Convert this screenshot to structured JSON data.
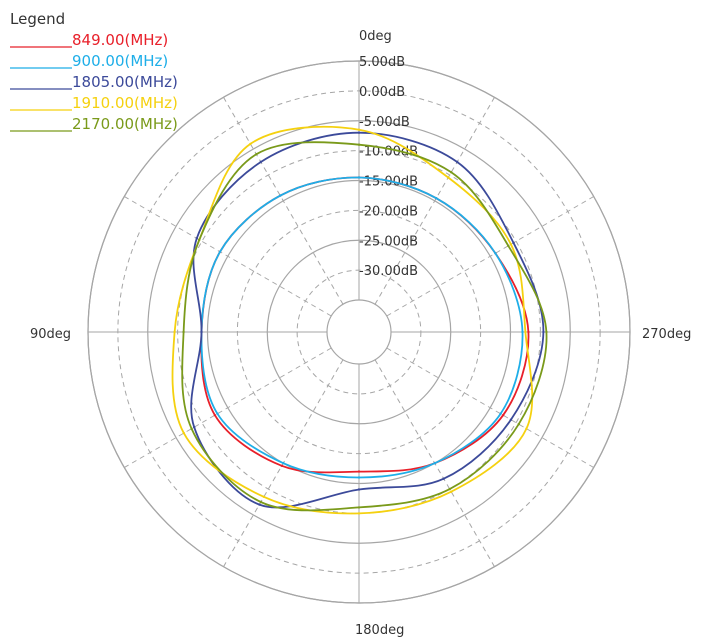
{
  "chart_data": {
    "type": "polar-line",
    "title": "",
    "legend": {
      "title": "Legend",
      "placement": "top-left"
    },
    "radial_axis": {
      "unit": "dB",
      "ticks": [
        "5.00dB",
        "0.00dB",
        "-5.00dB",
        "-10.00dB",
        "-15.00dB",
        "-20.00dB",
        "-25.00dB",
        "-30.00dB"
      ],
      "range": [
        -35,
        5
      ],
      "solid_rings_db": [
        5,
        -5,
        -15,
        -25
      ],
      "dashed_rings_db": [
        0,
        -10,
        -20,
        -30
      ]
    },
    "angular_axis": {
      "direction": "counterclockwise",
      "zero": "top",
      "labels": [
        {
          "angle": 0,
          "text": "0deg"
        },
        {
          "angle": 90,
          "text": "90deg"
        },
        {
          "angle": 180,
          "text": "180deg"
        },
        {
          "angle": 270,
          "text": "270deg"
        }
      ],
      "spokes_deg": [
        0,
        30,
        60,
        90,
        120,
        150,
        180,
        210,
        240,
        270,
        300,
        330
      ]
    },
    "angles_deg": [
      0,
      30,
      60,
      90,
      120,
      150,
      180,
      210,
      240,
      270,
      300,
      330
    ],
    "series": [
      {
        "name": "849.00(MHz)",
        "color": "#e8202a",
        "values": [
          -14.5,
          -14,
          -13.5,
          -14,
          -12.5,
          -14.5,
          -17,
          -15,
          -12.5,
          -12,
          -14,
          -14.5
        ]
      },
      {
        "name": "900.00(MHz)",
        "color": "#1eaee8",
        "values": [
          -14.5,
          -14,
          -13.5,
          -14,
          -13,
          -15,
          -16,
          -15,
          -13,
          -13,
          -14,
          -14.5
        ]
      },
      {
        "name": "1805.00(MHz)",
        "color": "#3c4a9a",
        "values": [
          -7,
          -7.5,
          -9,
          -14,
          -8.5,
          -7,
          -14,
          -12,
          -11,
          -9.5,
          -10.5,
          -7.5
        ]
      },
      {
        "name": "1910.00(MHz)",
        "color": "#f5d10f",
        "values": [
          -6.5,
          -4,
          -9.5,
          -9.5,
          -6.5,
          -8.5,
          -10,
          -9.5,
          -8,
          -12.5,
          -11,
          -10.5
        ]
      },
      {
        "name": "2170.00(MHz)",
        "color": "#7a9a1a",
        "values": [
          -9,
          -6,
          -9.5,
          -11,
          -8,
          -7.5,
          -11,
          -10,
          -9.5,
          -9,
          -11.5,
          -9.5
        ]
      }
    ]
  }
}
